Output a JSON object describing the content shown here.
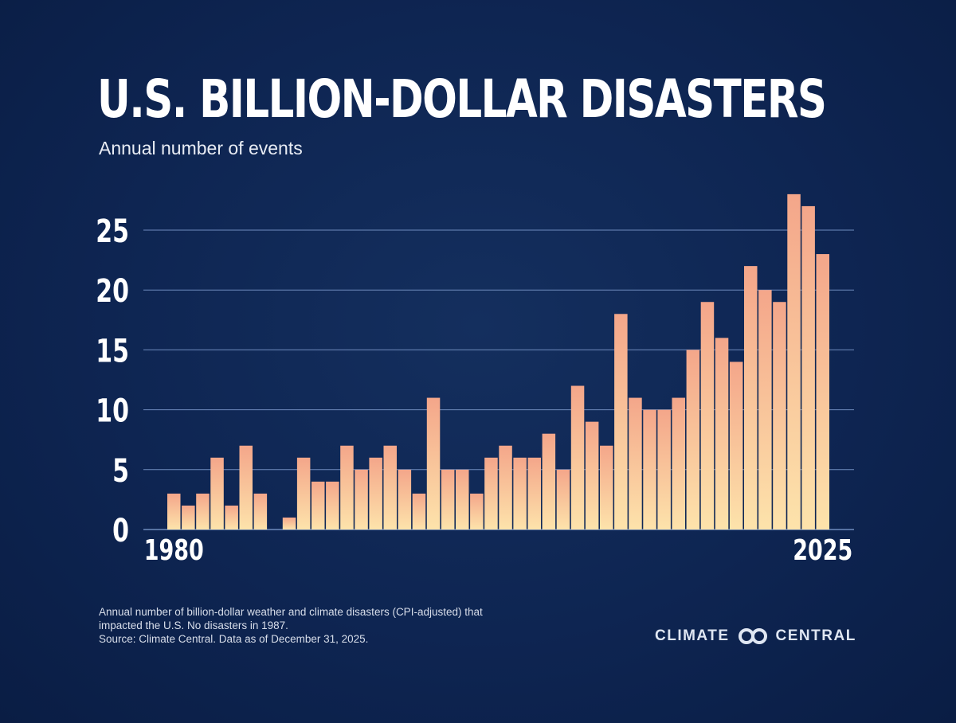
{
  "title": "U.S. BILLION-DOLLAR DISASTERS",
  "subtitle": "Annual number of events",
  "footnote": {
    "line1": "Annual number of billion-dollar weather and climate disasters (CPI-adjusted) that",
    "line2": "impacted the U.S. No disasters in 1987.",
    "line3": "Source: Climate Central. Data as of December 31, 2025."
  },
  "logo": {
    "left": "CLIMATE",
    "right": "CENTRAL",
    "icon": "linked-rings-icon"
  },
  "colors": {
    "background": "#0e2552",
    "bar_top": "#f4a68a",
    "bar_bottom": "#fde3ab",
    "grid": "#6f8bbd"
  },
  "chart_data": {
    "type": "bar",
    "title": "U.S. BILLION-DOLLAR DISASTERS",
    "subtitle": "Annual number of events",
    "x": [
      1980,
      1981,
      1982,
      1983,
      1984,
      1985,
      1986,
      1987,
      1988,
      1989,
      1990,
      1991,
      1992,
      1993,
      1994,
      1995,
      1996,
      1997,
      1998,
      1999,
      2000,
      2001,
      2002,
      2003,
      2004,
      2005,
      2006,
      2007,
      2008,
      2009,
      2010,
      2011,
      2012,
      2013,
      2014,
      2015,
      2016,
      2017,
      2018,
      2019,
      2020,
      2021,
      2022,
      2023,
      2024,
      2025
    ],
    "values": [
      3,
      2,
      3,
      6,
      2,
      7,
      3,
      0,
      1,
      6,
      4,
      4,
      7,
      5,
      6,
      7,
      5,
      3,
      11,
      5,
      5,
      3,
      6,
      7,
      6,
      6,
      8,
      5,
      12,
      9,
      7,
      18,
      11,
      10,
      10,
      11,
      15,
      19,
      16,
      14,
      22,
      20,
      19,
      28,
      27,
      23
    ],
    "x_tick_labels": [
      "1980",
      "2025"
    ],
    "y_ticks": [
      0,
      5,
      10,
      15,
      20,
      25
    ],
    "y_tick_labels": [
      "0",
      "5",
      "10",
      "15",
      "20",
      "25"
    ],
    "ylim": [
      0,
      28
    ],
    "grid": true,
    "xlabel": "",
    "ylabel": ""
  }
}
